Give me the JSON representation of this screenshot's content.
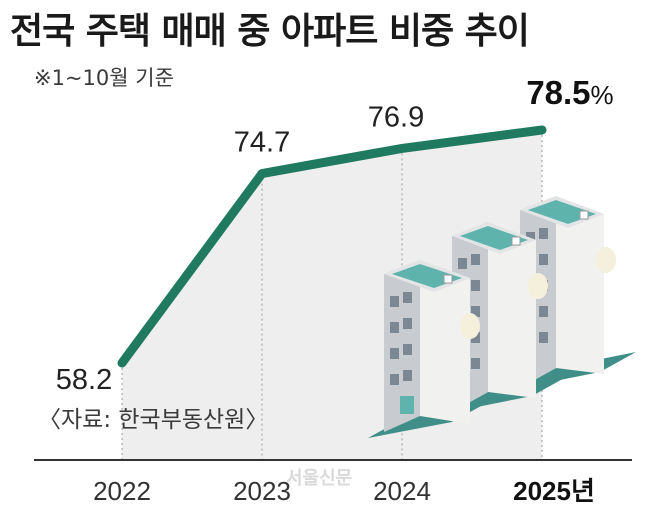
{
  "chart_data": {
    "type": "line",
    "title": "전국 주택 매매 중 아파트 비중 추이",
    "subtitle": "※1~10월 기준",
    "source": "〈자료: 한국부동산원〉",
    "categories": [
      "2022",
      "2023",
      "2024",
      "2025년"
    ],
    "series": [
      {
        "values": [
          58.2,
          74.7,
          76.9,
          78.5
        ]
      }
    ],
    "data_labels": [
      "58.2",
      "74.7",
      "76.9",
      "78.5"
    ],
    "last_label_unit": "%",
    "grid": false,
    "colors": {
      "line": "#1f7a5f",
      "area": "#eeeeee",
      "dropline": "#9a9a9a",
      "axis": "#333333"
    }
  },
  "watermark": "서울신문"
}
